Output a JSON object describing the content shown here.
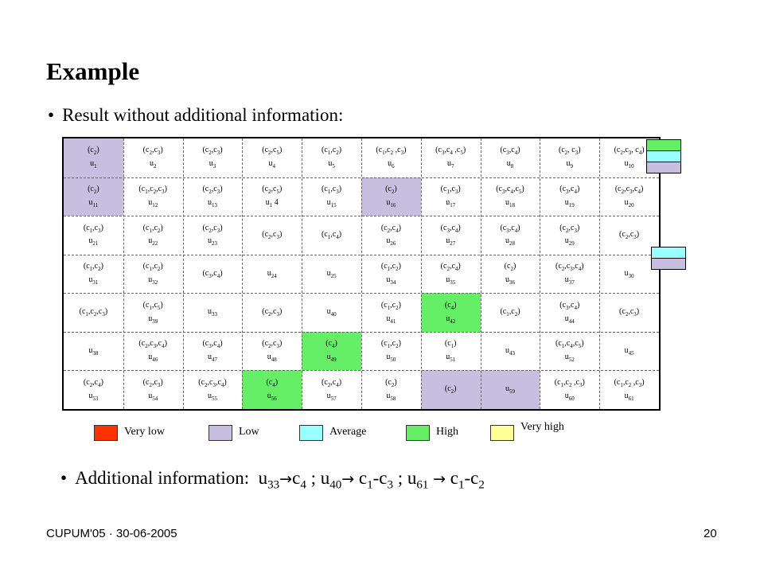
{
  "slide": {
    "title": "Example",
    "bullet1": "Result without additional information:",
    "bullet_dot": "•",
    "additional": {
      "prefix": "Additional information:",
      "parts": [
        "u",
        "33",
        "c",
        "4",
        " ; u",
        "40",
        " c",
        "1",
        "-c",
        "3",
        " ; u",
        "61",
        " c",
        "1",
        "-c",
        "2"
      ],
      "arrow": "→"
    }
  },
  "grid": {
    "rows": [
      [
        [
          "(c2)",
          "u1"
        ],
        [
          "(c2,c3)",
          "u2"
        ],
        [
          "(c2,c3)",
          "u3"
        ],
        [
          "(c2,c5)",
          "u4"
        ],
        [
          "(c1,c2)",
          "u5"
        ],
        [
          "(c1,c2 ,c3)",
          "u6"
        ],
        [
          "(c3,c4 ,c5)",
          "u7"
        ],
        [
          "(c3,c4)",
          "u8"
        ],
        [
          "(c2, c3)",
          "u9"
        ],
        [
          "(c2,c3, c4)",
          "u10"
        ]
      ],
      [
        [
          "(c2)",
          "u11"
        ],
        [
          "(c1,c2,c3)",
          "u12"
        ],
        [
          "(c2,c3)",
          "u13"
        ],
        [
          "(c2,c5)",
          "u1 4"
        ],
        [
          "(c1,c3)",
          "u15"
        ],
        [
          "(c2)",
          "u16"
        ],
        [
          "(c1,c3)",
          "u17"
        ],
        [
          "(c3,c4,c5)",
          "u18"
        ],
        [
          "(c3,c4)",
          "u19"
        ],
        [
          "(c2,c3,c4)",
          "u20"
        ]
      ],
      [
        [
          "(c1,c3)",
          "u21"
        ],
        [
          "(c1,c2)",
          "u22"
        ],
        [
          "(c2,c3)",
          "u23"
        ],
        [
          "(c2,c3)",
          ""
        ],
        [
          "(c1,c4)",
          ""
        ],
        [
          "(c2,c4)",
          "u26"
        ],
        [
          "(c3,c4)",
          "u27"
        ],
        [
          "(c3,c4)",
          "u28"
        ],
        [
          "(c2,c3)",
          "u29"
        ],
        [
          "(c2,c3)",
          ""
        ]
      ],
      [
        [
          "(c1,c2)",
          "u31"
        ],
        [
          "(c1,c2)",
          "u32"
        ],
        [
          "(c3,c4)",
          ""
        ],
        [
          "",
          "u24"
        ],
        [
          "",
          "u25"
        ],
        [
          "(c1,c2)",
          "u34"
        ],
        [
          "(c2,c4)",
          "u35"
        ],
        [
          "(c2)",
          "u36"
        ],
        [
          "(c2,c3,c4)",
          "u37"
        ],
        [
          "",
          "u30"
        ]
      ],
      [
        [
          "(c1,c2,c3)",
          ""
        ],
        [
          "(c1,c5)",
          "u39"
        ],
        [
          "",
          "u33"
        ],
        [
          "(c2,c3)",
          ""
        ],
        [
          "",
          "u40"
        ],
        [
          "(c1,c2)",
          "u41"
        ],
        [
          "(c4)",
          "u42"
        ],
        [
          "(c1,c2)",
          ""
        ],
        [
          "(c3,c4)",
          "u44"
        ],
        [
          "(c2,c3)",
          ""
        ]
      ],
      [
        [
          "",
          "u38"
        ],
        [
          "(c2,c3,c4)",
          "u46"
        ],
        [
          "(c3,c4)",
          "u47"
        ],
        [
          "(c2,c3)",
          "u48"
        ],
        [
          "(c4)",
          "u49"
        ],
        [
          "(c1,c2)",
          "u50"
        ],
        [
          "(c1)",
          "u51"
        ],
        [
          "",
          "u43"
        ],
        [
          "(c1,c4,c5)",
          "u52"
        ],
        [
          "",
          "u45"
        ]
      ],
      [
        [
          "(c2,c4)",
          "u53"
        ],
        [
          "(c2,c3)",
          "u54"
        ],
        [
          "(c2,c3,c4)",
          "u55"
        ],
        [
          "(c4)",
          "u56"
        ],
        [
          "(c2,c4)",
          "u57"
        ],
        [
          "(c2)",
          "u58"
        ],
        [
          "(c2)",
          ""
        ],
        [
          "",
          "u59"
        ],
        [
          "(c1,c2 ,c3)",
          "u60"
        ],
        [
          "(c1,c2 ,c3)",
          "u61"
        ]
      ]
    ]
  },
  "legend": [
    {
      "label": "Very low",
      "color": "#ff3300"
    },
    {
      "label": "Low",
      "color": "#c8bedf"
    },
    {
      "label": "Average",
      "color": "#99ffff"
    },
    {
      "label": "High",
      "color": "#66ee66"
    },
    {
      "label": "Very high",
      "color": "#ffff99"
    }
  ],
  "footer": {
    "left": "CUPUM'05 · 30-06-2005",
    "page": "20"
  }
}
